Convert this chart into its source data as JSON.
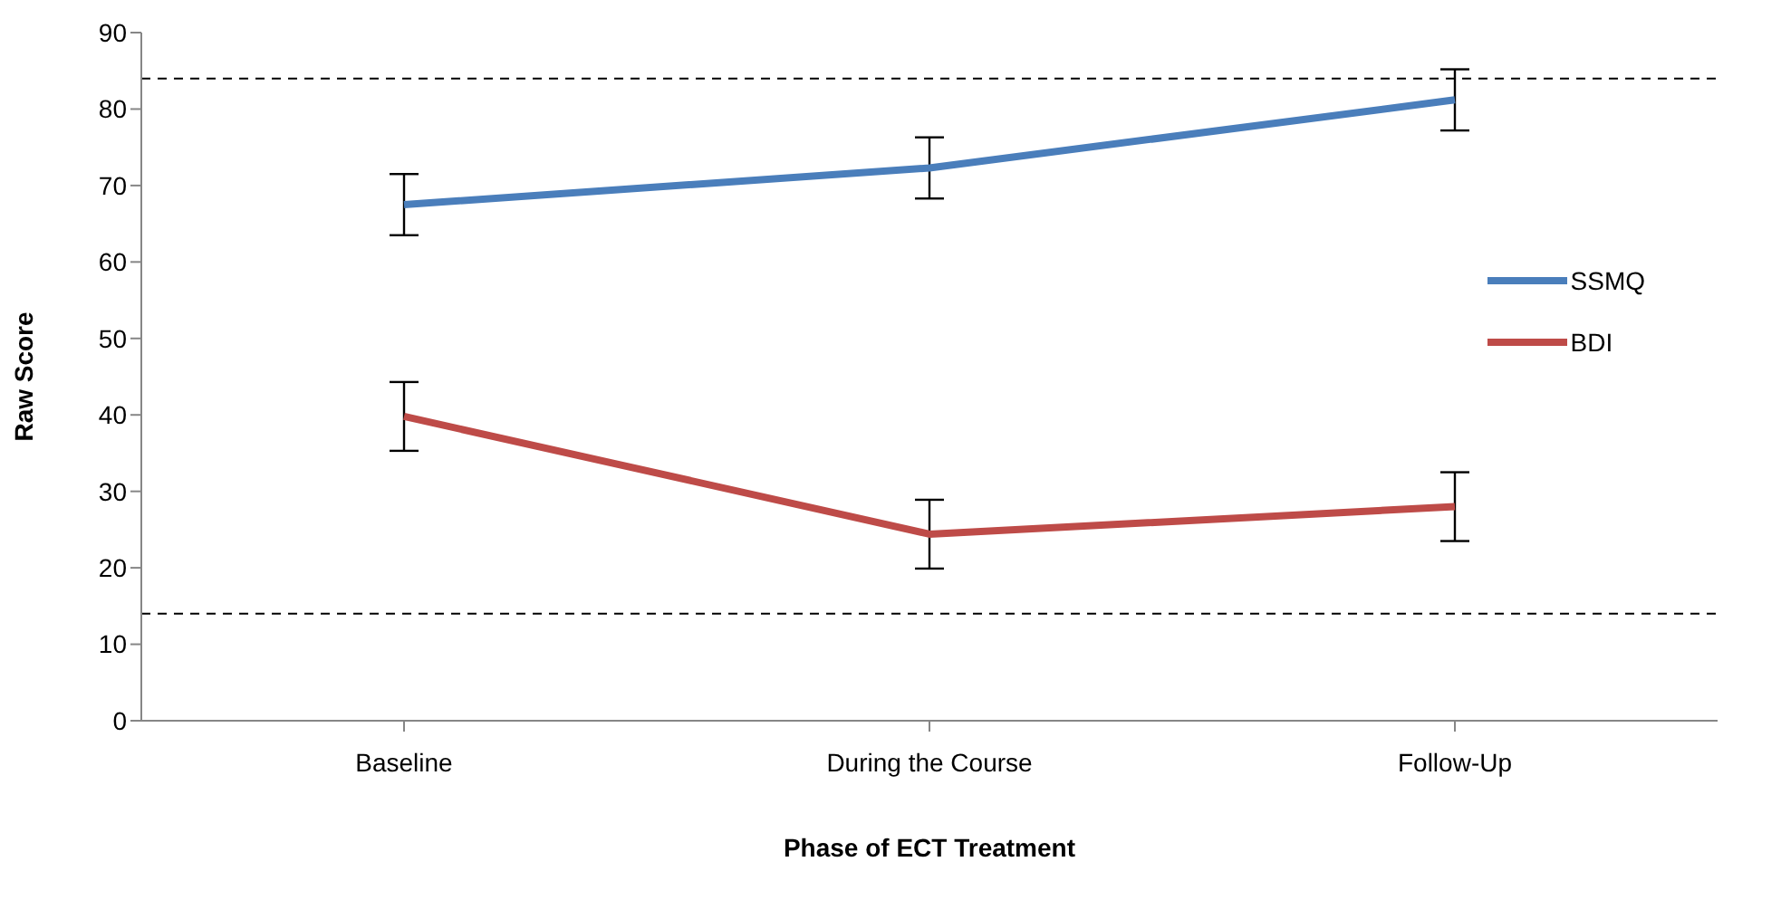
{
  "chart_data": {
    "type": "line",
    "xlabel": "Phase of ECT Treatment",
    "ylabel": "Raw Score",
    "categories": [
      "Baseline",
      "During the Course",
      "Follow-Up"
    ],
    "series": [
      {
        "name": "SSMQ",
        "color": "#4a7ebb",
        "values": [
          67.5,
          72.3,
          81.2
        ],
        "errors": [
          4,
          4,
          4
        ]
      },
      {
        "name": "BDI",
        "color": "#be4b48",
        "values": [
          39.8,
          24.4,
          28.0
        ],
        "errors": [
          4.5,
          4.5,
          4.5
        ]
      }
    ],
    "ylim": [
      0,
      90
    ],
    "yticks": [
      0,
      10,
      20,
      30,
      40,
      50,
      60,
      70,
      80,
      90
    ],
    "grid": false,
    "legend": "right",
    "marker": "none",
    "line_style": "solid",
    "ref_lines": [
      {
        "axis": "y",
        "value": 84,
        "color": "#000000",
        "line_style": "dashed"
      },
      {
        "axis": "y",
        "value": 14,
        "color": "#000000",
        "line_style": "dashed"
      }
    ]
  }
}
